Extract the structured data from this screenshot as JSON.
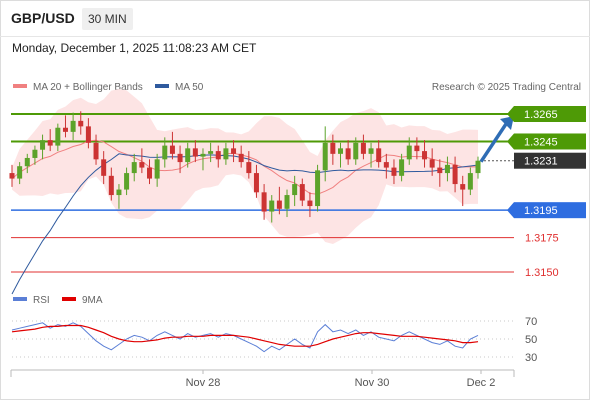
{
  "header": {
    "symbol": "GBP/USD",
    "timeframe": "30 MIN",
    "datetime": "Monday, December 1, 2025 11:08:23 AM CET"
  },
  "legend_main": [
    {
      "label": "MA 20 + Bollinger Bands",
      "color": "#f08080"
    },
    {
      "label": "MA 50",
      "color": "#2f5a9e"
    }
  ],
  "credit": "Research © 2025 Trading Central",
  "legend_rsi": [
    {
      "label": "RSI",
      "color": "#5b7fd6"
    },
    {
      "label": "9MA",
      "color": "#e00000"
    }
  ],
  "levels": [
    {
      "value": 1.3265,
      "label": "1.3265",
      "kind": "resistance",
      "color": "#4e9a06"
    },
    {
      "value": 1.3245,
      "label": "1.3245",
      "kind": "resistance",
      "color": "#4e9a06"
    },
    {
      "value": 1.3231,
      "label": "1.3231",
      "kind": "last_price",
      "color": "#333333"
    },
    {
      "value": 1.3195,
      "label": "1.3195",
      "kind": "pivot",
      "color": "#2e6de0"
    },
    {
      "value": 1.3175,
      "label": "1.3175",
      "kind": "support",
      "color": "#e03030"
    },
    {
      "value": 1.315,
      "label": "1.3150",
      "kind": "support",
      "color": "#e03030"
    }
  ],
  "chart_data": [
    {
      "type": "candlestick",
      "title": "GBP/USD",
      "interval": "30 MIN",
      "x_tick_labels": [
        "Nov 28",
        "Nov 30",
        "Dec 2"
      ],
      "ylim": [
        1.3135,
        1.3285
      ],
      "last_price": 1.3231,
      "forecast_target": 1.3265,
      "ohlc_approx": [
        [
          1.3222,
          1.3228,
          1.3212,
          1.3218
        ],
        [
          1.3218,
          1.323,
          1.3214,
          1.3227
        ],
        [
          1.3227,
          1.3236,
          1.3222,
          1.3233
        ],
        [
          1.3233,
          1.3242,
          1.3228,
          1.3239
        ],
        [
          1.3239,
          1.325,
          1.3232,
          1.3246
        ],
        [
          1.3246,
          1.3254,
          1.3238,
          1.3242
        ],
        [
          1.3242,
          1.3258,
          1.3238,
          1.3255
        ],
        [
          1.3255,
          1.3264,
          1.3248,
          1.3252
        ],
        [
          1.3252,
          1.3266,
          1.3246,
          1.326
        ],
        [
          1.326,
          1.3267,
          1.325,
          1.3256
        ],
        [
          1.3256,
          1.3262,
          1.324,
          1.3244
        ],
        [
          1.3244,
          1.325,
          1.3228,
          1.3232
        ],
        [
          1.3232,
          1.3238,
          1.3214,
          1.322
        ],
        [
          1.322,
          1.3226,
          1.3202,
          1.3206
        ],
        [
          1.3206,
          1.3214,
          1.3196,
          1.321
        ],
        [
          1.321,
          1.3226,
          1.3206,
          1.3222
        ],
        [
          1.3222,
          1.3236,
          1.3216,
          1.323
        ],
        [
          1.323,
          1.324,
          1.3222,
          1.3226
        ],
        [
          1.3226,
          1.3232,
          1.3214,
          1.3218
        ],
        [
          1.3218,
          1.3236,
          1.3212,
          1.3232
        ],
        [
          1.3232,
          1.3248,
          1.3226,
          1.3242
        ],
        [
          1.3242,
          1.3252,
          1.3232,
          1.3236
        ],
        [
          1.3236,
          1.3242,
          1.3222,
          1.323
        ],
        [
          1.323,
          1.3244,
          1.3226,
          1.324
        ],
        [
          1.324,
          1.3246,
          1.323,
          1.3234
        ],
        [
          1.3234,
          1.324,
          1.3224,
          1.3236
        ],
        [
          1.3236,
          1.3244,
          1.323,
          1.3238
        ],
        [
          1.3238,
          1.3242,
          1.3226,
          1.3232
        ],
        [
          1.3232,
          1.3244,
          1.3228,
          1.324
        ],
        [
          1.324,
          1.3246,
          1.323,
          1.3236
        ],
        [
          1.3236,
          1.3242,
          1.3226,
          1.323
        ],
        [
          1.323,
          1.3238,
          1.3218,
          1.3222
        ],
        [
          1.3222,
          1.3228,
          1.3204,
          1.3208
        ],
        [
          1.3208,
          1.3214,
          1.3188,
          1.3194
        ],
        [
          1.3194,
          1.3206,
          1.3186,
          1.3202
        ],
        [
          1.3202,
          1.3212,
          1.3192,
          1.3196
        ],
        [
          1.3196,
          1.321,
          1.319,
          1.3206
        ],
        [
          1.3206,
          1.322,
          1.3198,
          1.3214
        ],
        [
          1.3214,
          1.3218,
          1.3198,
          1.3202
        ],
        [
          1.3202,
          1.3208,
          1.319,
          1.3198
        ],
        [
          1.3198,
          1.3228,
          1.3194,
          1.3224
        ],
        [
          1.3224,
          1.3256,
          1.3216,
          1.3244
        ],
        [
          1.3244,
          1.325,
          1.3228,
          1.3236
        ],
        [
          1.3236,
          1.3244,
          1.3226,
          1.324
        ],
        [
          1.324,
          1.3246,
          1.3228,
          1.3232
        ],
        [
          1.3232,
          1.3248,
          1.3228,
          1.3244
        ],
        [
          1.3244,
          1.325,
          1.3232,
          1.3236
        ],
        [
          1.3236,
          1.3244,
          1.3226,
          1.324
        ],
        [
          1.324,
          1.3246,
          1.3226,
          1.323
        ],
        [
          1.323,
          1.3236,
          1.3218,
          1.3226
        ],
        [
          1.3226,
          1.3232,
          1.3214,
          1.322
        ],
        [
          1.322,
          1.3236,
          1.3216,
          1.3232
        ],
        [
          1.3232,
          1.3248,
          1.3228,
          1.3242
        ],
        [
          1.3242,
          1.3248,
          1.3232,
          1.3238
        ],
        [
          1.3238,
          1.3246,
          1.3226,
          1.3232
        ],
        [
          1.3232,
          1.324,
          1.322,
          1.3226
        ],
        [
          1.3226,
          1.3232,
          1.3212,
          1.3222
        ],
        [
          1.3222,
          1.3234,
          1.3216,
          1.3228
        ],
        [
          1.3228,
          1.3234,
          1.3208,
          1.3214
        ],
        [
          1.3214,
          1.322,
          1.3198,
          1.321
        ],
        [
          1.321,
          1.3226,
          1.3206,
          1.3222
        ],
        [
          1.3222,
          1.3234,
          1.3218,
          1.3231
        ]
      ]
    },
    {
      "type": "line",
      "title": "RSI",
      "series": [
        {
          "name": "RSI"
        },
        {
          "name": "9MA"
        }
      ],
      "y_tick_labels": [
        "70",
        "50",
        "30"
      ],
      "ylim": [
        20,
        80
      ],
      "rsi_approx": [
        60,
        62,
        64,
        66,
        68,
        62,
        66,
        64,
        68,
        64,
        56,
        48,
        42,
        38,
        44,
        50,
        54,
        52,
        48,
        54,
        58,
        54,
        50,
        56,
        52,
        54,
        56,
        52,
        56,
        54,
        50,
        46,
        42,
        36,
        42,
        38,
        44,
        50,
        44,
        40,
        58,
        66,
        58,
        60,
        56,
        60,
        54,
        58,
        52,
        50,
        48,
        54,
        58,
        54,
        50,
        46,
        44,
        48,
        42,
        40,
        50,
        54
      ],
      "ma9_approx": [
        58,
        59,
        60,
        61,
        63,
        64,
        64,
        65,
        65,
        65,
        63,
        60,
        57,
        53,
        50,
        48,
        47,
        47,
        48,
        49,
        51,
        52,
        52,
        53,
        53,
        53,
        54,
        54,
        54,
        54,
        53,
        52,
        50,
        48,
        46,
        44,
        43,
        42,
        42,
        42,
        44,
        47,
        50,
        52,
        54,
        56,
        57,
        57,
        56,
        55,
        54,
        53,
        53,
        53,
        52,
        51,
        50,
        49,
        48,
        46,
        46,
        47
      ]
    }
  ]
}
